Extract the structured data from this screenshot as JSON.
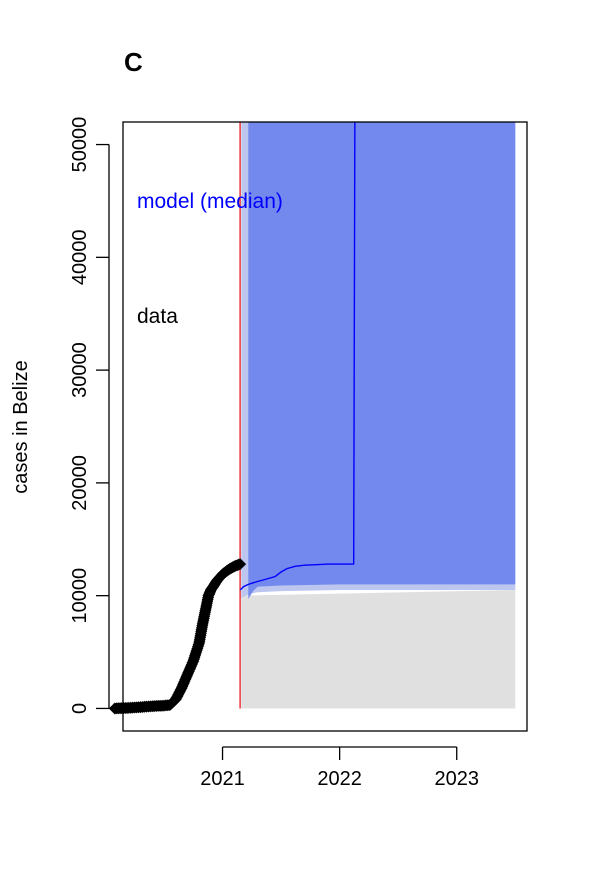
{
  "panel_label": "C",
  "chart_data": {
    "type": "line",
    "title": "",
    "xlabel": "",
    "ylabel": "cases in Belize",
    "xlim": [
      2020.15,
      2023.6
    ],
    "ylim": [
      -2000,
      52000
    ],
    "x_ticks": [
      2021,
      2022,
      2023
    ],
    "x_tick_labels": [
      "2021",
      "2022",
      "2023"
    ],
    "y_ticks": [
      0,
      10000,
      20000,
      30000,
      40000,
      50000
    ],
    "y_tick_labels": [
      "0",
      "10000",
      "20000",
      "30000",
      "40000",
      "50000"
    ],
    "grid": false,
    "fit_date": 2021.15,
    "colors": {
      "data": "#000000",
      "model": "#0000ff",
      "band_inner": "#7389ee",
      "band_outer": "#bcc6ee",
      "band_low": "#e0e0e0",
      "fit_line": "#e8262b"
    },
    "data_series": {
      "name": "data",
      "x": [
        2020.08,
        2020.2,
        2020.3,
        2020.4,
        2020.5,
        2020.55,
        2020.6,
        2020.65,
        2020.7,
        2020.75,
        2020.8,
        2020.83,
        2020.86,
        2020.88,
        2020.9,
        2020.92,
        2020.95,
        2021.0,
        2021.05,
        2021.1,
        2021.15
      ],
      "y": [
        0,
        50,
        120,
        200,
        250,
        300,
        800,
        1800,
        3000,
        4200,
        5800,
        7500,
        9000,
        10000,
        10500,
        10800,
        11300,
        11900,
        12300,
        12600,
        12800
      ]
    },
    "model_median": {
      "name": "model (median)",
      "x": [
        2021.15,
        2021.18,
        2021.22,
        2021.28,
        2021.35,
        2021.45,
        2021.5,
        2021.55,
        2021.62,
        2021.7,
        2021.8,
        2021.9,
        2022.0,
        2022.05,
        2022.1,
        2022.12,
        2022.13
      ],
      "y": [
        10500,
        10800,
        11000,
        11200,
        11400,
        11700,
        12100,
        12400,
        12600,
        12700,
        12750,
        12800,
        12800,
        12800,
        12800,
        12800,
        52000
      ]
    },
    "band_inner": {
      "x": [
        2021.22,
        2021.26,
        2021.3,
        2021.5,
        2022.0,
        2022.5,
        2023.0,
        2023.5
      ],
      "lower": [
        9700,
        10400,
        10800,
        10900,
        11000,
        11000,
        11000,
        11000
      ],
      "upper": [
        52000,
        52000,
        52000,
        52000,
        52000,
        52000,
        52000,
        52000
      ]
    },
    "band_outer": {
      "x": [
        2021.16,
        2021.2,
        2021.25,
        2021.3,
        2021.5,
        2022.0,
        2022.5,
        2023.0,
        2023.5
      ],
      "lower": [
        9800,
        10000,
        10200,
        10300,
        10400,
        10500,
        10500,
        10500,
        10500
      ],
      "upper": [
        52000,
        52000,
        52000,
        52000,
        52000,
        52000,
        52000,
        52000,
        52000
      ]
    },
    "band_low": {
      "x": [
        2021.16,
        2023.5
      ],
      "lower": [
        0,
        0
      ],
      "upper": [
        10000,
        10500
      ]
    },
    "legend": [
      {
        "label": "model (median)",
        "color": "#0000ff"
      },
      {
        "label": "data",
        "color": "#000000"
      }
    ]
  }
}
